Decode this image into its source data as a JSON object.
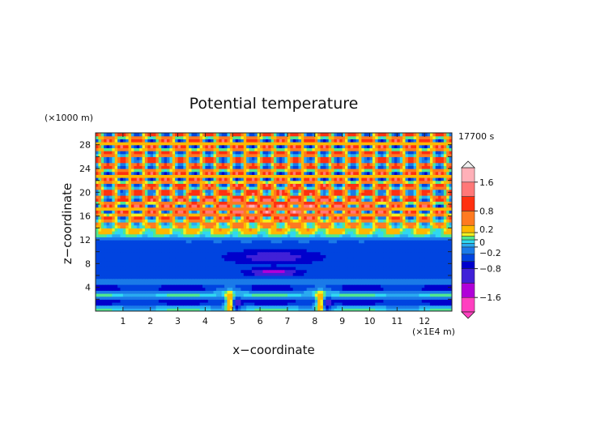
{
  "chart_data": {
    "type": "heatmap",
    "title": "Potential temperature",
    "xlabel": "x−coordinate",
    "ylabel": "z−coordinate",
    "x_unit": "(×1E4 m)",
    "y_unit": "(×1000 m)",
    "time_label": "17700 s",
    "xlim": [
      0,
      13
    ],
    "ylim": [
      0,
      30
    ],
    "x_ticks": [
      "1",
      "2",
      "3",
      "4",
      "5",
      "6",
      "7",
      "8",
      "9",
      "10",
      "11",
      "12"
    ],
    "y_ticks": [
      "4",
      "8",
      "12",
      "16",
      "20",
      "24",
      "28"
    ],
    "colorbar": {
      "range": [
        -2.0,
        2.0
      ],
      "tick_labels": [
        "1.6",
        "0.8",
        "0.2",
        "0",
        "−0.2",
        "−0.8",
        "−1.6"
      ],
      "tick_values": [
        1.6,
        0.8,
        0.2,
        0,
        -0.2,
        -0.8,
        -1.6
      ],
      "levels": [
        {
          "min": -2.0,
          "max": -1.6,
          "color": "#ff40c0"
        },
        {
          "min": -1.6,
          "max": -1.2,
          "color": "#b000d8"
        },
        {
          "min": -1.2,
          "max": -0.8,
          "color": "#4020d8"
        },
        {
          "min": -0.8,
          "max": -0.6,
          "color": "#0000cc"
        },
        {
          "min": -0.6,
          "max": -0.4,
          "color": "#0044e0"
        },
        {
          "min": -0.4,
          "max": -0.2,
          "color": "#1a7ae8"
        },
        {
          "min": -0.2,
          "max": -0.1,
          "color": "#2aaaf0"
        },
        {
          "min": -0.1,
          "max": 0.0,
          "color": "#30d8f0"
        },
        {
          "min": 0.0,
          "max": 0.1,
          "color": "#50e890"
        },
        {
          "min": 0.1,
          "max": 0.2,
          "color": "#f0f020"
        },
        {
          "min": 0.2,
          "max": 0.4,
          "color": "#ffb800"
        },
        {
          "min": 0.4,
          "max": 0.8,
          "color": "#ff7a20"
        },
        {
          "min": 0.8,
          "max": 1.2,
          "color": "#ff3010"
        },
        {
          "min": 1.2,
          "max": 1.6,
          "color": "#ff7878"
        },
        {
          "min": 1.6,
          "max": 2.0,
          "color": "#ffb0b8"
        }
      ]
    },
    "regions": [
      {
        "name": "near-surface",
        "z_range": [
          0,
          5
        ],
        "value": -0.5
      },
      {
        "name": "low-level bands",
        "z_range": [
          1,
          5
        ],
        "value": 0.1
      },
      {
        "name": "mountain plume 1",
        "x": 4.9,
        "z_range": [
          0,
          4
        ],
        "value": 0.8
      },
      {
        "name": "mountain plume 2",
        "x": 8.2,
        "z_range": [
          0,
          4
        ],
        "value": 0.8
      },
      {
        "name": "mid-level layer",
        "z_range": [
          5,
          12
        ],
        "value": -0.6
      },
      {
        "name": "cold lens",
        "x": 6.5,
        "z": 6.5,
        "value": -1.2
      },
      {
        "name": "transition band",
        "z_range": [
          12,
          14
        ],
        "value": -0.1
      },
      {
        "name": "upper wave field",
        "z_range": [
          14,
          30
        ],
        "value": 0.8
      }
    ]
  }
}
